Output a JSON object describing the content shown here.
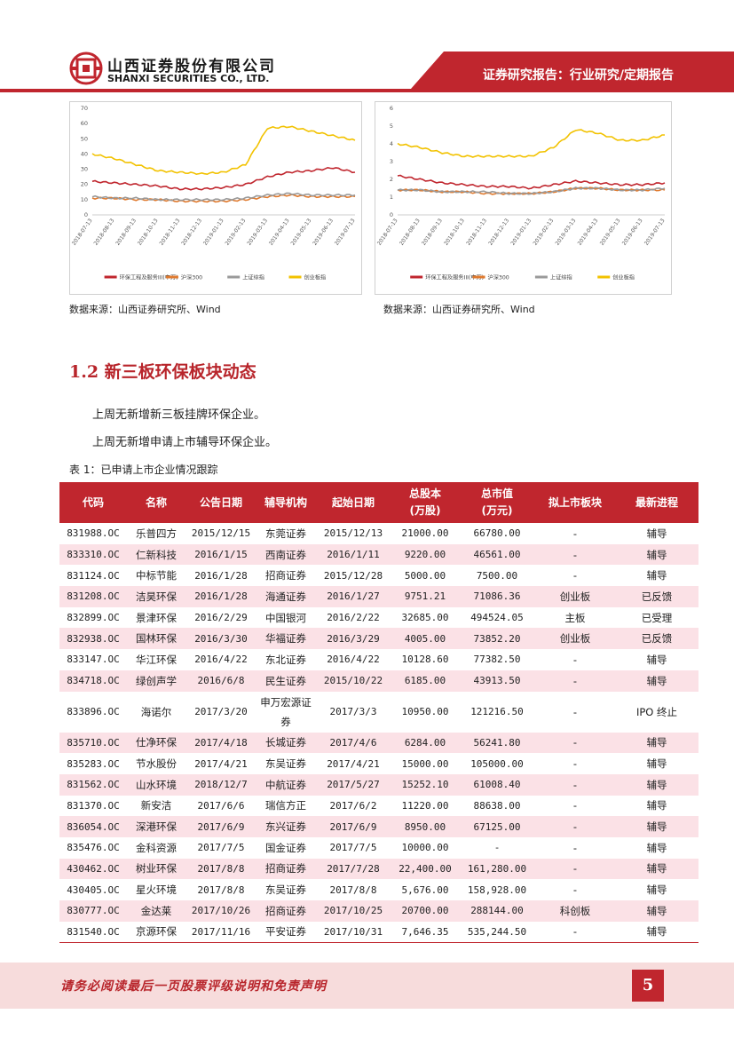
{
  "header": {
    "company_cn": "山西证券股份有限公司",
    "company_en": "SHANXI SECURITIES CO., LTD.",
    "report_type": "证券研究报告：行业研究/定期报告",
    "brand_color": "#c0262e"
  },
  "chart_data": [
    {
      "type": "line",
      "title": "",
      "ylim": [
        0,
        70
      ],
      "yticks": [
        "0",
        "10",
        "20",
        "30",
        "40",
        "50",
        "60",
        "70"
      ],
      "categories": [
        "2018-07-13",
        "2018-08-13",
        "2018-09-13",
        "2018-10-13",
        "2018-11-13",
        "2018-12-13",
        "2019-01-13",
        "2019-02-13",
        "2019-03-13",
        "2019-04-13",
        "2019-05-13",
        "2019-06-13",
        "2019-07-13"
      ],
      "series": [
        {
          "name": "环保工程及服务III(申万)",
          "color": "#c0262e",
          "values": [
            22,
            21,
            20,
            19,
            17,
            17,
            18,
            20,
            25,
            28,
            29,
            31,
            28
          ]
        },
        {
          "name": "沪深300",
          "color": "#e07a2e",
          "values": [
            11,
            11,
            10,
            10,
            9,
            9,
            9,
            10,
            12,
            13,
            12,
            12,
            12
          ]
        },
        {
          "name": "上证综指",
          "color": "#9a9a9a",
          "values": [
            12,
            11,
            11,
            10,
            10,
            10,
            10,
            11,
            13,
            14,
            13,
            13,
            13
          ]
        },
        {
          "name": "创业板指",
          "color": "#f2c200",
          "values": [
            40,
            37,
            33,
            29,
            28,
            27,
            28,
            33,
            57,
            58,
            55,
            52,
            49
          ]
        }
      ]
    },
    {
      "type": "line",
      "title": "",
      "ylim": [
        0,
        6
      ],
      "yticks": [
        "0",
        "1",
        "2",
        "3",
        "4",
        "5",
        "6"
      ],
      "categories": [
        "2018-07-13",
        "2018-08-13",
        "2018-09-13",
        "2018-10-13",
        "2018-11-13",
        "2018-12-13",
        "2019-01-13",
        "2019-02-13",
        "2019-03-13",
        "2019-04-13",
        "2019-05-13",
        "2019-06-13",
        "2019-07-13"
      ],
      "series": [
        {
          "name": "环保工程及服务III(申万)",
          "color": "#c0262e",
          "values": [
            2.2,
            2.0,
            1.8,
            1.7,
            1.6,
            1.6,
            1.5,
            1.7,
            1.9,
            1.8,
            1.7,
            1.7,
            1.8
          ]
        },
        {
          "name": "沪深300",
          "color": "#e07a2e",
          "values": [
            1.4,
            1.4,
            1.3,
            1.3,
            1.2,
            1.2,
            1.2,
            1.3,
            1.5,
            1.5,
            1.4,
            1.4,
            1.4
          ]
        },
        {
          "name": "上证综指",
          "color": "#9a9a9a",
          "values": [
            1.4,
            1.4,
            1.3,
            1.3,
            1.3,
            1.2,
            1.2,
            1.3,
            1.5,
            1.5,
            1.4,
            1.4,
            1.5
          ]
        },
        {
          "name": "创业板指",
          "color": "#f2c200",
          "values": [
            4.0,
            3.8,
            3.5,
            3.3,
            3.3,
            3.3,
            3.3,
            3.8,
            4.8,
            4.6,
            4.2,
            4.2,
            4.5
          ]
        }
      ]
    }
  ],
  "sources": {
    "left": "数据来源：山西证券研究所、Wind",
    "right": "数据来源：山西证券研究所、Wind"
  },
  "section": {
    "title": "1.2  新三板环保板块动态",
    "para1": "上周无新增新三板挂牌环保企业。",
    "para2": "上周无新增申请上市辅导环保企业。"
  },
  "table": {
    "caption": "表 1：已申请上市企业情况跟踪",
    "headers": [
      "代码",
      "名称",
      "公告日期",
      "辅导机构",
      "起始日期",
      "总股本\n(万股)",
      "总市值\n(万元)",
      "拟上市板块",
      "最新进程"
    ],
    "rows": [
      [
        "831988.OC",
        "乐普四方",
        "2015/12/15",
        "东莞证券",
        "2015/12/13",
        "21000.00",
        "66780.00",
        "-",
        "辅导"
      ],
      [
        "833310.OC",
        "仁新科技",
        "2016/1/15",
        "西南证券",
        "2016/1/11",
        "9220.00",
        "46561.00",
        "-",
        "辅导"
      ],
      [
        "831124.OC",
        "中标节能",
        "2016/1/28",
        "招商证券",
        "2015/12/28",
        "5000.00",
        "7500.00",
        "-",
        "辅导"
      ],
      [
        "831208.OC",
        "洁昊环保",
        "2016/1/28",
        "海通证券",
        "2016/1/27",
        "9751.21",
        "71086.36",
        "创业板",
        "已反馈"
      ],
      [
        "832899.OC",
        "景津环保",
        "2016/2/29",
        "中国银河",
        "2016/2/22",
        "32685.00",
        "494524.05",
        "主板",
        "已受理"
      ],
      [
        "832938.OC",
        "国林环保",
        "2016/3/30",
        "华福证券",
        "2016/3/29",
        "4005.00",
        "73852.20",
        "创业板",
        "已反馈"
      ],
      [
        "833147.OC",
        "华江环保",
        "2016/4/22",
        "东北证券",
        "2016/4/22",
        "10128.60",
        "77382.50",
        "-",
        "辅导"
      ],
      [
        "834718.OC",
        "绿创声学",
        "2016/6/8",
        "民生证券",
        "2015/10/22",
        "6185.00",
        "43913.50",
        "-",
        "辅导"
      ],
      [
        "833896.OC",
        "海诺尔",
        "2017/3/20",
        "申万宏源证券",
        "2017/3/3",
        "10950.00",
        "121216.50",
        "-",
        "IPO 终止"
      ],
      [
        "835710.OC",
        "仕净环保",
        "2017/4/18",
        "长城证券",
        "2017/4/6",
        "6284.00",
        "56241.80",
        "-",
        "辅导"
      ],
      [
        "835283.OC",
        "节水股份",
        "2017/4/21",
        "东吴证券",
        "2017/4/21",
        "15000.00",
        "105000.00",
        "-",
        "辅导"
      ],
      [
        "831562.OC",
        "山水环境",
        "2018/12/7",
        "中航证券",
        "2017/5/27",
        "15252.10",
        "61008.40",
        "-",
        "辅导"
      ],
      [
        "831370.OC",
        "新安洁",
        "2017/6/6",
        "瑞信方正",
        "2017/6/2",
        "11220.00",
        "88638.00",
        "-",
        "辅导"
      ],
      [
        "836054.OC",
        "深港环保",
        "2017/6/9",
        "东兴证券",
        "2017/6/9",
        "8950.00",
        "67125.00",
        "-",
        "辅导"
      ],
      [
        "835476.OC",
        "金科资源",
        "2017/7/5",
        "国金证券",
        "2017/7/5",
        "10000.00",
        "-",
        "-",
        "辅导"
      ],
      [
        "430462.OC",
        "树业环保",
        "2017/8/8",
        "招商证券",
        "2017/7/28",
        "22,400.00",
        "161,280.00",
        "-",
        "辅导"
      ],
      [
        "430405.OC",
        "星火环境",
        "2017/8/8",
        "东吴证券",
        "2017/8/8",
        "5,676.00",
        "158,928.00",
        "-",
        "辅导"
      ],
      [
        "830777.OC",
        "金达莱",
        "2017/10/26",
        "招商证券",
        "2017/10/25",
        "20700.00",
        "288144.00",
        "科创板",
        "辅导"
      ],
      [
        "831540.OC",
        "京源环保",
        "2017/11/16",
        "平安证券",
        "2017/10/31",
        "7,646.35",
        "535,244.50",
        "-",
        "辅导"
      ]
    ]
  },
  "footer": {
    "disclaimer": "请务必阅读最后一页股票评级说明和免责声明",
    "page_number": "5"
  }
}
